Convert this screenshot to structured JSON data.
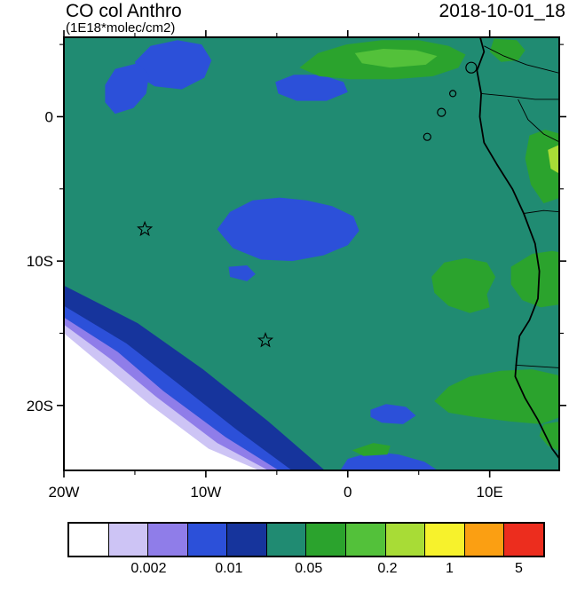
{
  "header": {
    "title": "CO col Anthro",
    "units": "(1E18*molec/cm2)",
    "timestamp": "2018-10-01_18"
  },
  "chart_data": {
    "type": "heatmap",
    "subtype": "filled-contour-map",
    "title": "CO col Anthro",
    "units": "1E18*molec/cm2",
    "timestamp": "2018-10-01_18",
    "region_shown": "South Atlantic / southwest Africa coast",
    "x_axis": {
      "range": [
        -20,
        14.9
      ],
      "major_ticks": [
        {
          "deg": -20,
          "label": "20W"
        },
        {
          "deg": -10,
          "label": "10W"
        },
        {
          "deg": 0,
          "label": "0"
        },
        {
          "deg": 10,
          "label": "10E"
        }
      ],
      "minor_ticks": [
        -15,
        -5,
        5
      ]
    },
    "y_axis": {
      "range": [
        5.5,
        -24.5
      ],
      "major_ticks": [
        {
          "deg": 0,
          "label": "0"
        },
        {
          "deg": -10,
          "label": "10S"
        },
        {
          "deg": -20,
          "label": "20S"
        }
      ],
      "minor_ticks": [
        5,
        -5,
        -15
      ]
    },
    "palette": [
      "#ffffff",
      "#cdc4f5",
      "#8f7de9",
      "#2c50d9",
      "#16349c",
      "#208b72",
      "#2ba32d",
      "#53c13a",
      "#a8dc36",
      "#f7f22c",
      "#fb9f12",
      "#ec2d1e"
    ],
    "background_level": 5,
    "colorbar_labels": [
      {
        "text": "0.002",
        "pct": 17
      },
      {
        "text": "0.01",
        "pct": 33.8
      },
      {
        "text": "0.05",
        "pct": 50.5
      },
      {
        "text": "0.2",
        "pct": 67
      },
      {
        "text": "1",
        "pct": 80
      },
      {
        "text": "5",
        "pct": 94.5
      }
    ],
    "regions": [
      {
        "name": "sw-low-band-navy",
        "level": 4,
        "points": [
          [
            -20,
            -11.7
          ],
          [
            -14.8,
            -14.3
          ],
          [
            -10.2,
            -17.5
          ],
          [
            -5.6,
            -21.1
          ],
          [
            -1.5,
            -24.6
          ],
          [
            -20,
            -24.6
          ]
        ]
      },
      {
        "name": "sw-low-band-blue",
        "level": 3,
        "points": [
          [
            -20,
            -13.1
          ],
          [
            -15.6,
            -15.7
          ],
          [
            -12.2,
            -18.3
          ],
          [
            -7.8,
            -21.7
          ],
          [
            -3.8,
            -24.6
          ],
          [
            -20,
            -24.6
          ]
        ]
      },
      {
        "name": "sw-low-band-purple",
        "level": 2,
        "points": [
          [
            -20,
            -13.9
          ],
          [
            -16.2,
            -16.3
          ],
          [
            -13.0,
            -19.0
          ],
          [
            -8.6,
            -22.2
          ],
          [
            -4.7,
            -24.6
          ],
          [
            -20,
            -24.6
          ]
        ]
      },
      {
        "name": "sw-low-band-lavender",
        "level": 1,
        "points": [
          [
            -20,
            -14.4
          ],
          [
            -16.7,
            -16.8
          ],
          [
            -13.5,
            -19.4
          ],
          [
            -9.2,
            -22.6
          ],
          [
            -5.4,
            -24.6
          ],
          [
            -20,
            -24.6
          ]
        ]
      },
      {
        "name": "sw-low-band-white",
        "level": 0,
        "points": [
          [
            -20,
            -15.0
          ],
          [
            -17.2,
            -17.3
          ],
          [
            -14.0,
            -19.9
          ],
          [
            -9.8,
            -23.0
          ],
          [
            -6.0,
            -24.6
          ],
          [
            -20,
            -24.6
          ]
        ]
      },
      {
        "name": "blue-patch-nw-upper",
        "level": 3,
        "points": [
          [
            -15.0,
            3.8
          ],
          [
            -13.9,
            4.9
          ],
          [
            -12.0,
            5.3
          ],
          [
            -10.3,
            5.0
          ],
          [
            -9.6,
            3.9
          ],
          [
            -10.1,
            2.7
          ],
          [
            -11.7,
            1.9
          ],
          [
            -13.6,
            2.1
          ],
          [
            -14.6,
            2.7
          ]
        ]
      },
      {
        "name": "blue-patch-nw-lower",
        "level": 3,
        "points": [
          [
            -17.1,
            2.2
          ],
          [
            -16.4,
            3.3
          ],
          [
            -14.8,
            3.7
          ],
          [
            -14.0,
            2.9
          ],
          [
            -14.2,
            1.6
          ],
          [
            -15.1,
            0.6
          ],
          [
            -16.4,
            0.2
          ],
          [
            -17.1,
            1.0
          ]
        ]
      },
      {
        "name": "blue-patch-north-central",
        "level": 3,
        "points": [
          [
            -5.1,
            2.4
          ],
          [
            -3.8,
            2.9
          ],
          [
            -1.9,
            2.9
          ],
          [
            -0.3,
            2.4
          ],
          [
            0.0,
            1.7
          ],
          [
            -1.5,
            1.1
          ],
          [
            -3.6,
            1.1
          ],
          [
            -4.9,
            1.6
          ]
        ]
      },
      {
        "name": "blue-blob-central",
        "level": 3,
        "points": [
          [
            -9.2,
            -7.8
          ],
          [
            -8.3,
            -6.6
          ],
          [
            -6.7,
            -5.8
          ],
          [
            -4.8,
            -5.6
          ],
          [
            -2.9,
            -5.8
          ],
          [
            -1.1,
            -6.2
          ],
          [
            0.4,
            -6.9
          ],
          [
            0.8,
            -7.9
          ],
          [
            0.0,
            -8.9
          ],
          [
            -1.7,
            -9.6
          ],
          [
            -3.9,
            -10.0
          ],
          [
            -6.1,
            -9.9
          ],
          [
            -8.1,
            -9.1
          ]
        ]
      },
      {
        "name": "blue-blob-central-south",
        "level": 3,
        "points": [
          [
            -8.4,
            -10.4
          ],
          [
            -7.1,
            -10.3
          ],
          [
            -6.5,
            -10.9
          ],
          [
            -7.1,
            -11.4
          ],
          [
            -8.3,
            -11.1
          ]
        ]
      },
      {
        "name": "blue-patch-south",
        "level": 3,
        "points": [
          [
            1.6,
            -20.3
          ],
          [
            2.7,
            -19.9
          ],
          [
            4.1,
            -20.1
          ],
          [
            4.8,
            -20.7
          ],
          [
            3.9,
            -21.3
          ],
          [
            2.4,
            -21.2
          ],
          [
            1.6,
            -20.8
          ]
        ]
      },
      {
        "name": "blue-strip-bottom",
        "level": 3,
        "points": [
          [
            -0.6,
            -24.6
          ],
          [
            0.0,
            -23.7
          ],
          [
            1.8,
            -23.2
          ],
          [
            3.6,
            -23.4
          ],
          [
            5.4,
            -23.9
          ],
          [
            6.5,
            -24.6
          ]
        ]
      },
      {
        "name": "green-north",
        "level": 6,
        "points": [
          [
            -3.4,
            3.4
          ],
          [
            -2.1,
            4.4
          ],
          [
            -0.1,
            5.0
          ],
          [
            2.4,
            5.3
          ],
          [
            5.0,
            5.3
          ],
          [
            7.1,
            4.9
          ],
          [
            8.3,
            4.3
          ],
          [
            7.8,
            3.4
          ],
          [
            6.0,
            2.8
          ],
          [
            3.3,
            2.6
          ],
          [
            0.2,
            2.6
          ],
          [
            -2.0,
            2.8
          ]
        ]
      },
      {
        "name": "green-north-core",
        "level": 7,
        "points": [
          [
            0.5,
            4.4
          ],
          [
            2.5,
            4.7
          ],
          [
            4.8,
            4.6
          ],
          [
            6.3,
            4.2
          ],
          [
            5.5,
            3.6
          ],
          [
            3.0,
            3.4
          ],
          [
            1.0,
            3.7
          ]
        ]
      },
      {
        "name": "green-coast-mid",
        "level": 6,
        "points": [
          [
            5.9,
            -11.1
          ],
          [
            6.8,
            -10.1
          ],
          [
            8.3,
            -9.8
          ],
          [
            9.8,
            -10.1
          ],
          [
            10.4,
            -11.1
          ],
          [
            9.8,
            -12.3
          ],
          [
            10.0,
            -13.2
          ],
          [
            8.6,
            -13.6
          ],
          [
            7.1,
            -13.1
          ],
          [
            6.1,
            -12.2
          ]
        ]
      },
      {
        "name": "green-right-edge-mid",
        "level": 6,
        "points": [
          [
            11.5,
            -10.4
          ],
          [
            13.0,
            -9.5
          ],
          [
            14.4,
            -9.3
          ],
          [
            15.0,
            -9.4
          ],
          [
            15.0,
            -13.0
          ],
          [
            13.6,
            -13.2
          ],
          [
            12.3,
            -12.7
          ],
          [
            11.5,
            -11.6
          ]
        ]
      },
      {
        "name": "green-bottom-right",
        "level": 6,
        "points": [
          [
            6.1,
            -19.7
          ],
          [
            7.1,
            -18.7
          ],
          [
            8.6,
            -18.0
          ],
          [
            10.8,
            -17.6
          ],
          [
            13.0,
            -17.5
          ],
          [
            14.8,
            -17.9
          ],
          [
            15.0,
            -18.3
          ],
          [
            15.0,
            -20.8
          ],
          [
            13.6,
            -21.3
          ],
          [
            11.4,
            -21.1
          ],
          [
            8.9,
            -20.8
          ],
          [
            7.1,
            -20.5
          ]
        ]
      },
      {
        "name": "green-right-edge-lower",
        "level": 6,
        "points": [
          [
            13.8,
            -21.3
          ],
          [
            15.0,
            -21.1
          ],
          [
            15.0,
            -23.2
          ],
          [
            14.1,
            -22.8
          ],
          [
            13.5,
            -22.1
          ]
        ]
      },
      {
        "name": "green-top-right",
        "level": 6,
        "points": [
          [
            10.3,
            5.4
          ],
          [
            11.9,
            5.3
          ],
          [
            12.5,
            4.6
          ],
          [
            12.0,
            3.9
          ],
          [
            10.8,
            3.8
          ],
          [
            10.0,
            4.5
          ]
        ]
      },
      {
        "name": "green-land-strip",
        "level": 6,
        "points": [
          [
            12.8,
            -1.3
          ],
          [
            13.9,
            -0.9
          ],
          [
            15.0,
            -1.2
          ],
          [
            15.0,
            -5.6
          ],
          [
            13.8,
            -6.0
          ],
          [
            12.9,
            -4.7
          ],
          [
            12.5,
            -2.9
          ]
        ]
      },
      {
        "name": "yellowgreen-right-edge",
        "level": 8,
        "points": [
          [
            14.1,
            -2.3
          ],
          [
            15.0,
            -1.9
          ],
          [
            15.0,
            -4.0
          ],
          [
            14.3,
            -3.6
          ]
        ]
      },
      {
        "name": "green-bottom-center",
        "level": 6,
        "points": [
          [
            0.3,
            -23.1
          ],
          [
            1.8,
            -22.6
          ],
          [
            3.0,
            -22.8
          ],
          [
            2.8,
            -23.4
          ],
          [
            1.1,
            -23.5
          ]
        ]
      }
    ],
    "coastline": [
      [
        9.3,
        5.6
      ],
      [
        9.6,
        4.5
      ],
      [
        9.1,
        3.2
      ],
      [
        9.4,
        1.6
      ],
      [
        9.3,
        0.0
      ],
      [
        9.6,
        -1.8
      ],
      [
        10.5,
        -3.3
      ],
      [
        11.6,
        -5.0
      ],
      [
        12.4,
        -6.7
      ],
      [
        13.2,
        -8.8
      ],
      [
        13.5,
        -10.7
      ],
      [
        13.4,
        -12.6
      ],
      [
        12.8,
        -14.1
      ],
      [
        12.1,
        -15.2
      ],
      [
        11.9,
        -16.8
      ],
      [
        11.8,
        -18.0
      ],
      [
        12.5,
        -19.5
      ],
      [
        13.4,
        -21.0
      ],
      [
        14.4,
        -23.0
      ],
      [
        15.0,
        -23.8
      ]
    ],
    "borders": [
      [
        [
          9.6,
          4.9
        ],
        [
          11.0,
          4.2
        ],
        [
          12.6,
          3.6
        ],
        [
          14.2,
          3.2
        ],
        [
          15.0,
          3.0
        ]
      ],
      [
        [
          9.4,
          1.6
        ],
        [
          11.5,
          1.4
        ],
        [
          13.2,
          1.2
        ],
        [
          15.0,
          1.2
        ]
      ],
      [
        [
          12.0,
          1.2
        ],
        [
          12.7,
          -0.2
        ],
        [
          13.8,
          -1.2
        ],
        [
          15.0,
          -1.8
        ]
      ],
      [
        [
          12.4,
          -6.7
        ],
        [
          13.8,
          -6.5
        ],
        [
          15.0,
          -6.6
        ]
      ],
      [
        [
          11.8,
          -17.2
        ],
        [
          13.4,
          -17.3
        ],
        [
          15.0,
          -17.4
        ]
      ]
    ],
    "islands": [
      {
        "lon": 8.7,
        "lat": 3.4,
        "r": 6
      },
      {
        "lon": 7.4,
        "lat": 1.6,
        "r": 3.5
      },
      {
        "lon": 6.6,
        "lat": 0.3,
        "r": 4.5
      },
      {
        "lon": 5.6,
        "lat": -1.4,
        "r": 4
      }
    ],
    "markers": [
      {
        "shape": "star",
        "lon": -14.3,
        "lat": -7.8
      },
      {
        "shape": "star",
        "lon": -5.8,
        "lat": -15.5
      }
    ]
  }
}
